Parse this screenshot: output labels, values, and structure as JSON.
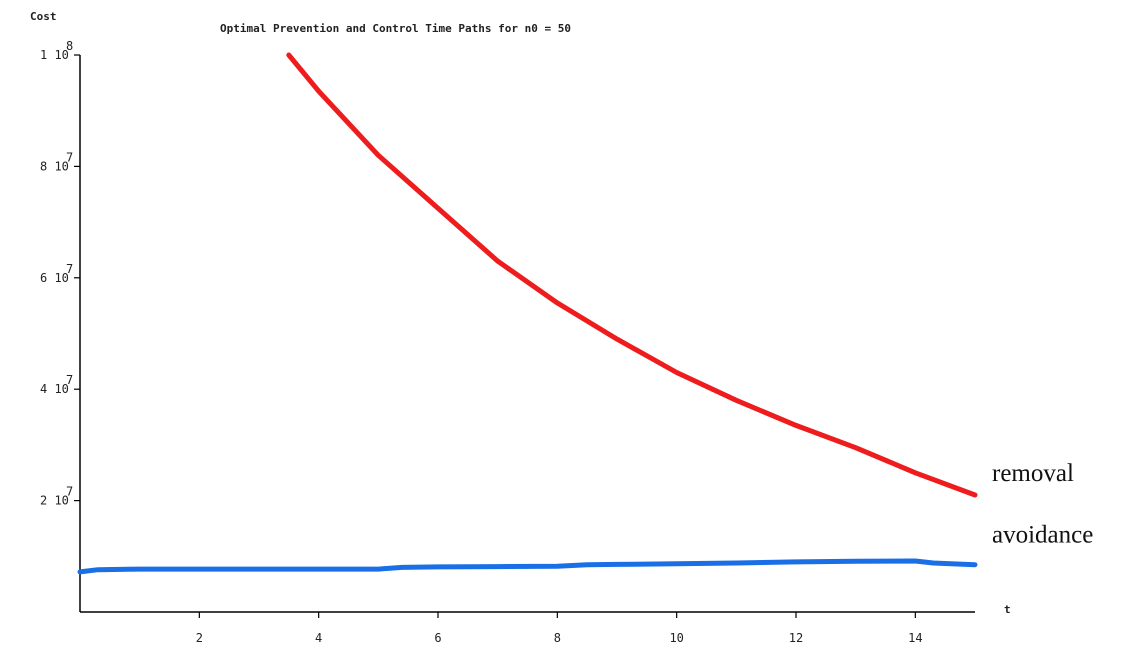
{
  "chart_data": {
    "type": "line",
    "title": "Optimal Prevention and Control Time Paths for n0 = 50",
    "ylabel": "Cost",
    "xlabel": "t",
    "xlim": [
      0,
      15
    ],
    "ylim": [
      0,
      100000000
    ],
    "grid": false,
    "x_ticks": [
      2,
      4,
      6,
      8,
      10,
      12,
      14
    ],
    "y_ticks": [
      {
        "value": 20000000,
        "label": "2 10",
        "exp": "7"
      },
      {
        "value": 40000000,
        "label": "4 10",
        "exp": "7"
      },
      {
        "value": 60000000,
        "label": "6 10",
        "exp": "7"
      },
      {
        "value": 80000000,
        "label": "8 10",
        "exp": "7"
      },
      {
        "value": 100000000,
        "label": "1 10",
        "exp": "8"
      }
    ],
    "series": [
      {
        "name": "removal",
        "color": "#ee1c1c",
        "x": [
          3.5,
          4,
          5,
          6,
          7,
          8,
          9,
          10,
          11,
          12,
          13,
          14,
          15
        ],
        "y": [
          100000000,
          93500000,
          82000000,
          72500000,
          63000000,
          55500000,
          49000000,
          43000000,
          38000000,
          33500000,
          29500000,
          25000000,
          21000000
        ]
      },
      {
        "name": "avoidance",
        "color": "#1a6fe6",
        "x": [
          0,
          0.3,
          1,
          2,
          3,
          4,
          5,
          5.4,
          6,
          7,
          8,
          8.5,
          9,
          10,
          11,
          12,
          13,
          14,
          14.3,
          15
        ],
        "y": [
          7200000,
          7600000,
          7700000,
          7700000,
          7700000,
          7700000,
          7700000,
          8000000,
          8100000,
          8150000,
          8200000,
          8500000,
          8550000,
          8650000,
          8800000,
          9000000,
          9100000,
          9150000,
          8800000,
          8500000
        ]
      }
    ]
  }
}
